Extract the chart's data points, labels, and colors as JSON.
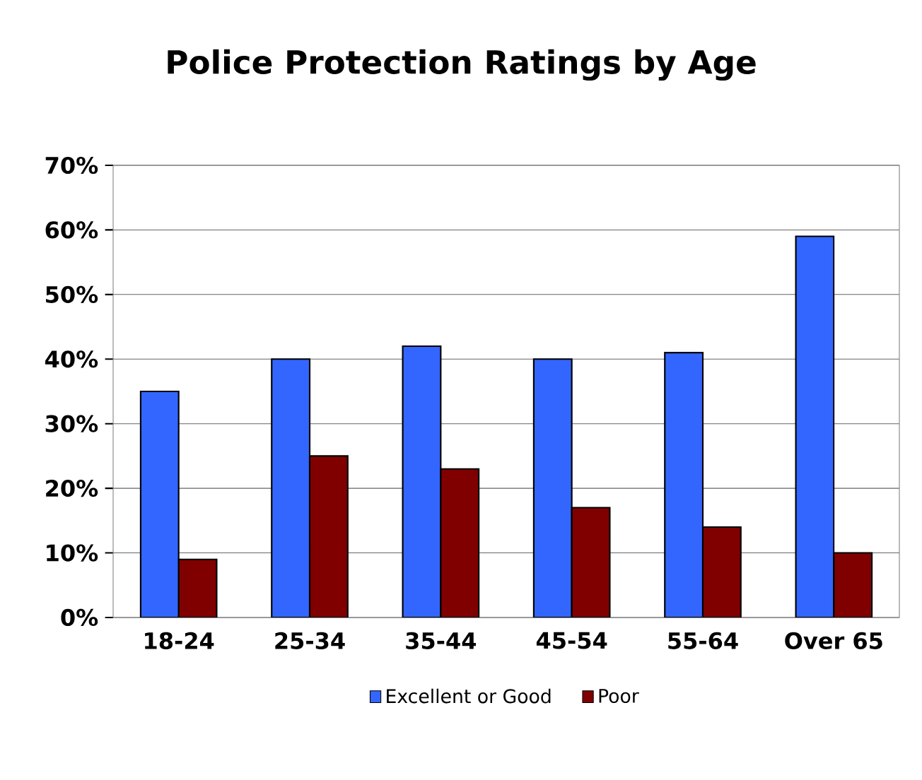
{
  "chart_data": {
    "type": "bar",
    "title": "Police Protection Ratings by Age",
    "categories": [
      "18-24",
      "25-34",
      "35-44",
      "45-54",
      "55-64",
      "Over 65"
    ],
    "series": [
      {
        "name": "Excellent or Good",
        "color": "#3366ff",
        "values": [
          35,
          40,
          42,
          40,
          41,
          59
        ]
      },
      {
        "name": "Poor",
        "color": "#800000",
        "values": [
          9,
          25,
          23,
          17,
          14,
          10
        ]
      }
    ],
    "ylim": [
      0,
      70
    ],
    "yticks": [
      {
        "value": 0,
        "label": "0%"
      },
      {
        "value": 10,
        "label": "10%"
      },
      {
        "value": 20,
        "label": "20%"
      },
      {
        "value": 30,
        "label": "30%"
      },
      {
        "value": 40,
        "label": "40%"
      },
      {
        "value": 50,
        "label": "50%"
      },
      {
        "value": 60,
        "label": "60%"
      },
      {
        "value": 70,
        "label": "70%"
      }
    ],
    "grid": "y",
    "legend": "bottom"
  }
}
